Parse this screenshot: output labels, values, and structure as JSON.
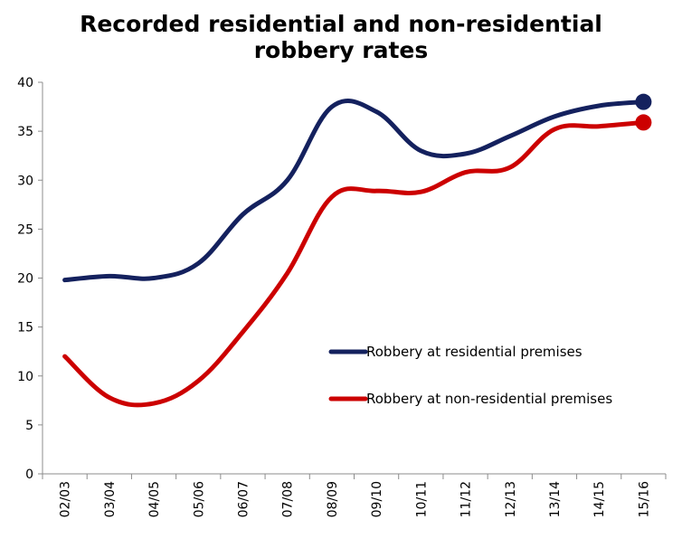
{
  "chart_data": {
    "type": "line",
    "title_lines": [
      "Recorded residential and non-residential",
      "robbery rates"
    ],
    "xlabel": "",
    "ylabel": "",
    "categories": [
      "02/03",
      "03/04",
      "04/05",
      "05/06",
      "06/07",
      "07/08",
      "08/09",
      "09/10",
      "10/11",
      "11/12",
      "12/13",
      "13/14",
      "14/15",
      "15/16"
    ],
    "ylim": [
      0,
      40
    ],
    "yticks": [
      0,
      5,
      10,
      15,
      20,
      25,
      30,
      35,
      40
    ],
    "grid": false,
    "legend_position": "lower-right",
    "series": [
      {
        "name": "Robbery at residential premises",
        "color": "#14215e",
        "values": [
          19.8,
          20.2,
          20.0,
          21.5,
          26.5,
          30.0,
          37.5,
          37.0,
          33.0,
          32.7,
          34.5,
          36.5,
          37.6,
          38.0
        ],
        "end_marker": true
      },
      {
        "name": "Robbery at non-residential premises",
        "color": "#cc0000",
        "values": [
          12.0,
          7.8,
          7.2,
          9.5,
          14.5,
          20.5,
          28.3,
          28.9,
          28.8,
          30.8,
          31.3,
          35.2,
          35.5,
          35.9
        ],
        "end_marker": true
      }
    ]
  }
}
